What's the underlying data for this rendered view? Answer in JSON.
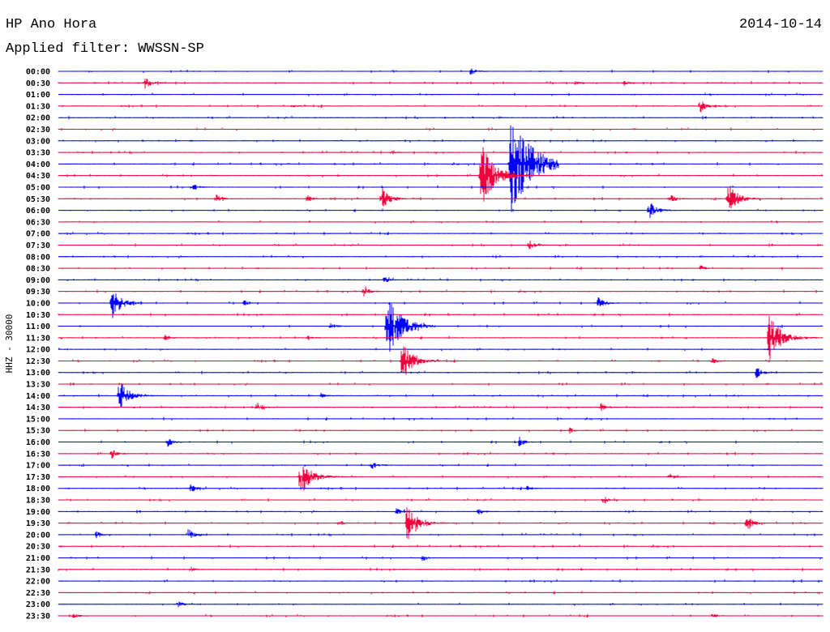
{
  "header": {
    "station": "HP Ano Hora",
    "date": "2014-10-14",
    "filter": "Applied filter: WWSSN-SP"
  },
  "chart_data": {
    "type": "line",
    "title": "HP Ano Hora",
    "subtitle": "Applied filter: WWSSN-SP",
    "ylabel": "HHZ - 30000",
    "xlabel": "",
    "row_minutes": 30,
    "colors": {
      "even": "#0000ff",
      "odd": "#f0003c"
    },
    "row_labels": [
      "00:00",
      "00:30",
      "01:00",
      "01:30",
      "02:00",
      "02:30",
      "03:00",
      "03:30",
      "04:00",
      "04:30",
      "05:00",
      "05:30",
      "06:00",
      "06:30",
      "07:00",
      "07:30",
      "08:00",
      "08:30",
      "09:00",
      "09:30",
      "10:00",
      "10:30",
      "11:00",
      "11:30",
      "12:00",
      "12:30",
      "13:00",
      "13:30",
      "14:00",
      "14:30",
      "15:00",
      "15:30",
      "16:00",
      "16:30",
      "17:00",
      "17:30",
      "18:00",
      "18:30",
      "19:00",
      "19:30",
      "20:00",
      "20:30",
      "21:00",
      "21:30",
      "22:00",
      "22:30",
      "23:00",
      "23:30"
    ],
    "events": [
      {
        "row": 0,
        "minute": 16.2,
        "amp": 5
      },
      {
        "row": 1,
        "minute": 3.4,
        "amp": 8
      },
      {
        "row": 1,
        "minute": 20.3,
        "amp": 2
      },
      {
        "row": 1,
        "minute": 22.2,
        "amp": 3
      },
      {
        "row": 3,
        "minute": 25.2,
        "amp": 8
      },
      {
        "row": 3,
        "minute": 9.2,
        "amp": 2
      },
      {
        "row": 7,
        "minute": 13.1,
        "amp": 3
      },
      {
        "row": 8,
        "minute": 17.75,
        "amp": 65
      },
      {
        "row": 9,
        "minute": 16.6,
        "amp": 40
      },
      {
        "row": 10,
        "minute": 5.3,
        "amp": 4
      },
      {
        "row": 11,
        "minute": 12.7,
        "amp": 15
      },
      {
        "row": 11,
        "minute": 6.2,
        "amp": 5
      },
      {
        "row": 11,
        "minute": 9.8,
        "amp": 4
      },
      {
        "row": 11,
        "minute": 26.3,
        "amp": 20
      },
      {
        "row": 11,
        "minute": 24.0,
        "amp": 6
      },
      {
        "row": 12,
        "minute": 23.2,
        "amp": 12
      },
      {
        "row": 15,
        "minute": 18.5,
        "amp": 6
      },
      {
        "row": 17,
        "minute": 25.2,
        "amp": 4
      },
      {
        "row": 18,
        "minute": 12.8,
        "amp": 4
      },
      {
        "row": 19,
        "minute": 12.0,
        "amp": 6
      },
      {
        "row": 20,
        "minute": 2.1,
        "amp": 20
      },
      {
        "row": 20,
        "minute": 21.2,
        "amp": 8
      },
      {
        "row": 20,
        "minute": 7.3,
        "amp": 3
      },
      {
        "row": 22,
        "minute": 12.9,
        "amp": 40
      },
      {
        "row": 22,
        "minute": 10.7,
        "amp": 4
      },
      {
        "row": 23,
        "minute": 27.9,
        "amp": 30
      },
      {
        "row": 23,
        "minute": 4.2,
        "amp": 4
      },
      {
        "row": 23,
        "minute": 9.8,
        "amp": 3
      },
      {
        "row": 25,
        "minute": 13.5,
        "amp": 25
      },
      {
        "row": 25,
        "minute": 25.7,
        "amp": 4
      },
      {
        "row": 26,
        "minute": 27.4,
        "amp": 8
      },
      {
        "row": 28,
        "minute": 2.4,
        "amp": 20
      },
      {
        "row": 28,
        "minute": 10.3,
        "amp": 3
      },
      {
        "row": 29,
        "minute": 7.8,
        "amp": 5
      },
      {
        "row": 29,
        "minute": 21.3,
        "amp": 5
      },
      {
        "row": 31,
        "minute": 20.1,
        "amp": 3
      },
      {
        "row": 32,
        "minute": 4.3,
        "amp": 6
      },
      {
        "row": 32,
        "minute": 18.1,
        "amp": 6
      },
      {
        "row": 33,
        "minute": 2.1,
        "amp": 6
      },
      {
        "row": 34,
        "minute": 12.3,
        "amp": 6
      },
      {
        "row": 35,
        "minute": 9.5,
        "amp": 25
      },
      {
        "row": 35,
        "minute": 24.0,
        "amp": 4
      },
      {
        "row": 36,
        "minute": 5.2,
        "amp": 5
      },
      {
        "row": 36,
        "minute": 18.4,
        "amp": 3
      },
      {
        "row": 37,
        "minute": 21.4,
        "amp": 4
      },
      {
        "row": 38,
        "minute": 13.3,
        "amp": 5
      },
      {
        "row": 38,
        "minute": 16.5,
        "amp": 5
      },
      {
        "row": 39,
        "minute": 13.7,
        "amp": 25
      },
      {
        "row": 39,
        "minute": 27.0,
        "amp": 10
      },
      {
        "row": 39,
        "minute": 11.0,
        "amp": 3
      },
      {
        "row": 40,
        "minute": 1.5,
        "amp": 4
      },
      {
        "row": 40,
        "minute": 5.1,
        "amp": 8
      },
      {
        "row": 42,
        "minute": 14.3,
        "amp": 4
      },
      {
        "row": 43,
        "minute": 5.2,
        "amp": 3
      },
      {
        "row": 46,
        "minute": 4.7,
        "amp": 4
      },
      {
        "row": 47,
        "minute": 0.6,
        "amp": 3
      },
      {
        "row": 47,
        "minute": 25.7,
        "amp": 3
      }
    ]
  }
}
